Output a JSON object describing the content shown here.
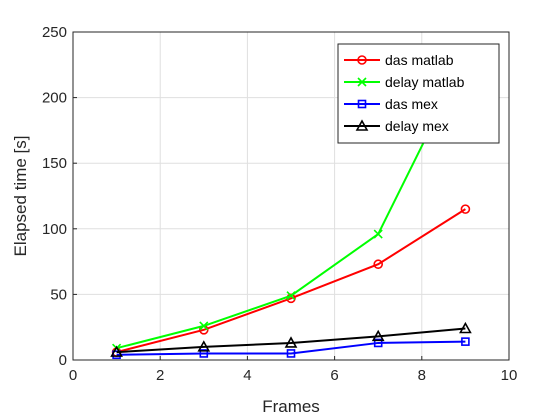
{
  "chart_data": {
    "type": "line",
    "xlabel": "Frames",
    "ylabel": "Elapsed time [s]",
    "xlim": [
      0,
      10
    ],
    "ylim": [
      0,
      250
    ],
    "xticks": [
      0,
      2,
      4,
      6,
      8,
      10
    ],
    "yticks": [
      0,
      50,
      100,
      150,
      200,
      250
    ],
    "grid": true,
    "legend_position": "top-right",
    "x": [
      1,
      3,
      5,
      7,
      9
    ],
    "series": [
      {
        "name": "das matlab",
        "color": "#ff0000",
        "marker": "circle",
        "values": [
          6,
          23,
          47,
          73,
          115
        ]
      },
      {
        "name": "delay matlab",
        "color": "#00ff00",
        "marker": "x",
        "values": [
          9,
          26,
          49,
          96,
          230
        ]
      },
      {
        "name": "das mex",
        "color": "#0000ff",
        "marker": "square",
        "values": [
          4,
          5,
          5,
          13,
          14
        ]
      },
      {
        "name": "delay mex",
        "color": "#000000",
        "marker": "triangle",
        "values": [
          6,
          10,
          13,
          18,
          24
        ]
      }
    ]
  }
}
